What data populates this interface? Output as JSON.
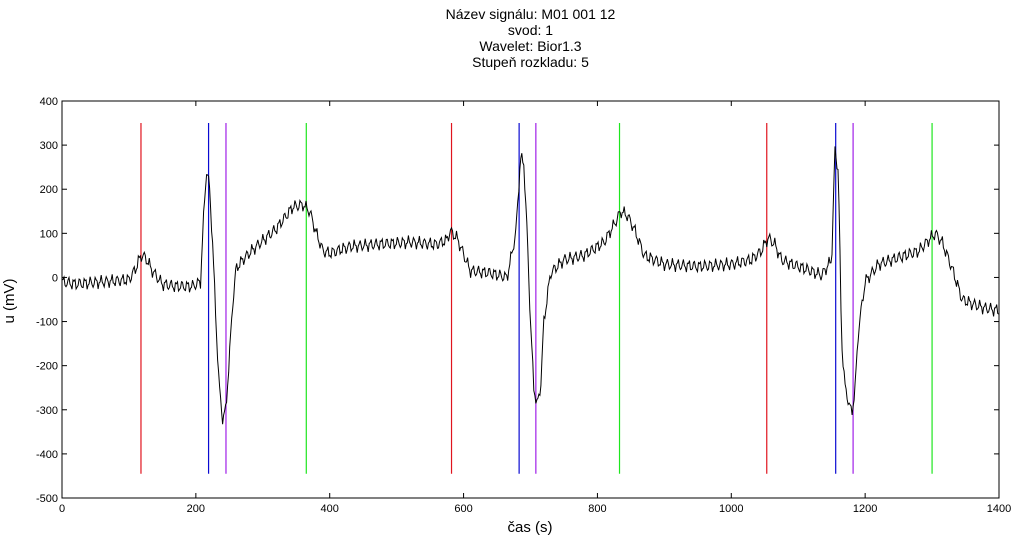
{
  "title_lines": [
    "Název signálu: M01 001 12",
    "svod: 1",
    "Wavelet: Bior1.3",
    "Stupeň rozkladu: 5"
  ],
  "chart_data": {
    "type": "line",
    "xlabel": "čas (s)",
    "ylabel": "u (mV)",
    "xlim": [
      0,
      1400
    ],
    "ylim": [
      -500,
      400
    ],
    "xticks": [
      0,
      200,
      400,
      600,
      800,
      1000,
      1200,
      1400
    ],
    "yticks": [
      -500,
      -400,
      -300,
      -200,
      -100,
      0,
      100,
      200,
      300,
      400
    ],
    "grid": false,
    "signal": {
      "x": [
        0,
        20,
        60,
        100,
        110,
        118,
        125,
        135,
        150,
        170,
        195,
        207,
        212,
        216,
        220,
        225,
        230,
        235,
        240,
        245,
        250,
        255,
        260,
        270,
        290,
        320,
        345,
        360,
        370,
        380,
        390,
        400,
        430,
        470,
        520,
        560,
        575,
        580,
        590,
        610,
        640,
        665,
        678,
        685,
        690,
        695,
        700,
        705,
        710,
        715,
        720,
        730,
        750,
        780,
        810,
        825,
        835,
        845,
        855,
        870,
        900,
        950,
        1000,
        1030,
        1045,
        1055,
        1065,
        1075,
        1090,
        1110,
        1135,
        1150,
        1155,
        1160,
        1165,
        1170,
        1175,
        1180,
        1185,
        1190,
        1200,
        1220,
        1250,
        1280,
        1295,
        1305,
        1315,
        1330,
        1345,
        1360,
        1380,
        1400
      ],
      "y": [
        -10,
        -15,
        -10,
        -5,
        20,
        50,
        45,
        15,
        -15,
        -20,
        -20,
        -10,
        150,
        245,
        210,
        80,
        -100,
        -250,
        -320,
        -300,
        -180,
        -60,
        20,
        40,
        70,
        110,
        160,
        165,
        150,
        100,
        60,
        55,
        70,
        75,
        80,
        75,
        85,
        105,
        90,
        15,
        10,
        0,
        100,
        270,
        260,
        100,
        -100,
        -250,
        -290,
        -250,
        -100,
        10,
        40,
        50,
        80,
        120,
        150,
        140,
        110,
        50,
        30,
        25,
        30,
        40,
        60,
        90,
        75,
        40,
        30,
        20,
        5,
        40,
        290,
        240,
        -150,
        -250,
        -280,
        -310,
        -250,
        -120,
        -10,
        30,
        45,
        60,
        85,
        100,
        80,
        20,
        -50,
        -60,
        -70,
        -75
      ]
    },
    "markers": [
      {
        "x": 118,
        "color": "#e0141e"
      },
      {
        "x": 219,
        "color": "#0a0ad2"
      },
      {
        "x": 245,
        "color": "#a020e8"
      },
      {
        "x": 365,
        "color": "#1ee61e"
      },
      {
        "x": 582,
        "color": "#e0141e"
      },
      {
        "x": 683,
        "color": "#0a0ad2"
      },
      {
        "x": 708,
        "color": "#a020e8"
      },
      {
        "x": 833,
        "color": "#1ee61e"
      },
      {
        "x": 1053,
        "color": "#e0141e"
      },
      {
        "x": 1156,
        "color": "#0a0ad2"
      },
      {
        "x": 1182,
        "color": "#a020e8"
      },
      {
        "x": 1300,
        "color": "#1ee61e"
      }
    ],
    "marker_range": [
      -445,
      350
    ]
  }
}
